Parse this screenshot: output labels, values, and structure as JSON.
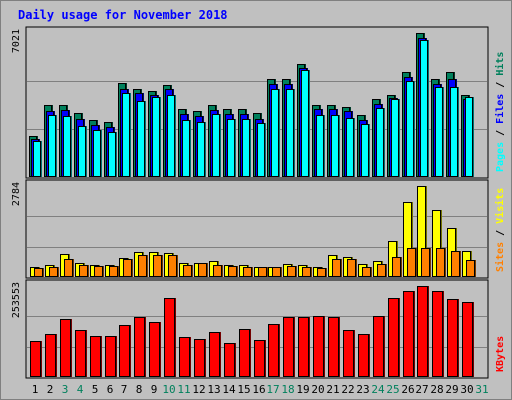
{
  "chart_data": {
    "type": "bar",
    "title": "Daily usage for November 2018",
    "colors": {
      "hits": "#00805c",
      "files": "#0000ff",
      "pages": "#00ffff",
      "visits": "#ffff00",
      "sites": "#ff8000",
      "kbytes": "#ff0000",
      "background": "#c0c0c0",
      "grid": "#808080",
      "weekend_label": "#00805c"
    },
    "days": [
      "1",
      "2",
      "3",
      "4",
      "5",
      "6",
      "7",
      "8",
      "9",
      "10",
      "11",
      "12",
      "13",
      "14",
      "15",
      "16",
      "17",
      "18",
      "19",
      "20",
      "21",
      "22",
      "23",
      "24",
      "25",
      "26",
      "27",
      "28",
      "29",
      "30",
      "31"
    ],
    "weekend_days": [
      "3",
      "4",
      "10",
      "11",
      "17",
      "18",
      "24",
      "25",
      "31"
    ],
    "panels": [
      {
        "id": "hits",
        "max_label": "7021",
        "ymax": 7021,
        "legend": [
          {
            "text": "Pages",
            "color": "#00ffff"
          },
          {
            "text": " / ",
            "color": "#000000"
          },
          {
            "text": "Files",
            "color": "#0000ff"
          },
          {
            "text": " / ",
            "color": "#000000"
          },
          {
            "text": "Hits",
            "color": "#00805c"
          }
        ],
        "series": [
          {
            "name": "Hits",
            "color": "#00805c",
            "values": [
              2000,
              3500,
              3500,
              3100,
              2800,
              2700,
              4600,
              4300,
              4200,
              4500,
              3300,
              3200,
              3500,
              3300,
              3300,
              3100,
              4800,
              4800,
              5500,
              3500,
              3500,
              3400,
              3000,
              3800,
              4000,
              5100,
              7021,
              4800,
              5100,
              4000,
              0
            ]
          },
          {
            "name": "Files",
            "color": "#0000ff",
            "values": [
              1850,
              3200,
              3250,
              2850,
              2550,
              2450,
              4300,
              4100,
              4000,
              4300,
              3050,
              2950,
              3250,
              3050,
              3050,
              2850,
              4550,
              4550,
              5300,
              3300,
              3300,
              3200,
              2800,
              3550,
              3850,
              4900,
              6800,
              4550,
              4800,
              3800,
              0
            ]
          },
          {
            "name": "Pages",
            "color": "#00ffff",
            "values": [
              1750,
              3000,
              2950,
              2500,
              2300,
              2200,
              4100,
              3700,
              3900,
              4000,
              2800,
              2700,
              3050,
              2850,
              2850,
              2650,
              4300,
              4300,
              5200,
              3000,
              3000,
              2900,
              2600,
              3350,
              3800,
              4700,
              6700,
              4400,
              4400,
              3900,
              0
            ]
          }
        ]
      },
      {
        "id": "visits",
        "max_label": "2784",
        "ymax": 2784,
        "legend": [
          {
            "text": "Sites",
            "color": "#ff8000"
          },
          {
            "text": " / ",
            "color": "#000000"
          },
          {
            "text": "Visits",
            "color": "#ffff00"
          }
        ],
        "series": [
          {
            "name": "Visits",
            "color": "#ffff00",
            "values": [
              320,
              360,
              700,
              430,
              380,
              360,
              580,
              760,
              750,
              720,
              420,
              420,
              500,
              380,
              360,
              300,
              320,
              390,
              360,
              300,
              680,
              620,
              400,
              480,
              1100,
              2300,
              2784,
              2050,
              1500,
              800,
              0
            ]
          },
          {
            "name": "Sites",
            "color": "#ff8000",
            "values": [
              280,
              300,
              560,
              360,
              340,
              340,
              560,
              660,
              660,
              680,
              360,
              420,
              380,
              340,
              300,
              300,
              300,
              340,
              320,
              280,
              560,
              560,
              320,
              400,
              600,
              880,
              900,
              900,
              800,
              520,
              0
            ]
          }
        ]
      },
      {
        "id": "kbytes",
        "max_label": "253553",
        "ymax": 253553,
        "legend": [
          {
            "text": "KBytes",
            "color": "#ff0000"
          }
        ],
        "series": [
          {
            "name": "KBytes",
            "color": "#ff0000",
            "values": [
              100000,
              120000,
              162000,
              132000,
              113000,
              113000,
              146000,
              168000,
              154000,
              220000,
              111000,
              106000,
              125000,
              95000,
              134000,
              103000,
              149000,
              167000,
              166000,
              171000,
              166000,
              131000,
              121000,
              171000,
              219000,
              240000,
              253553,
              240000,
              217000,
              208000,
              0
            ]
          }
        ]
      }
    ]
  }
}
